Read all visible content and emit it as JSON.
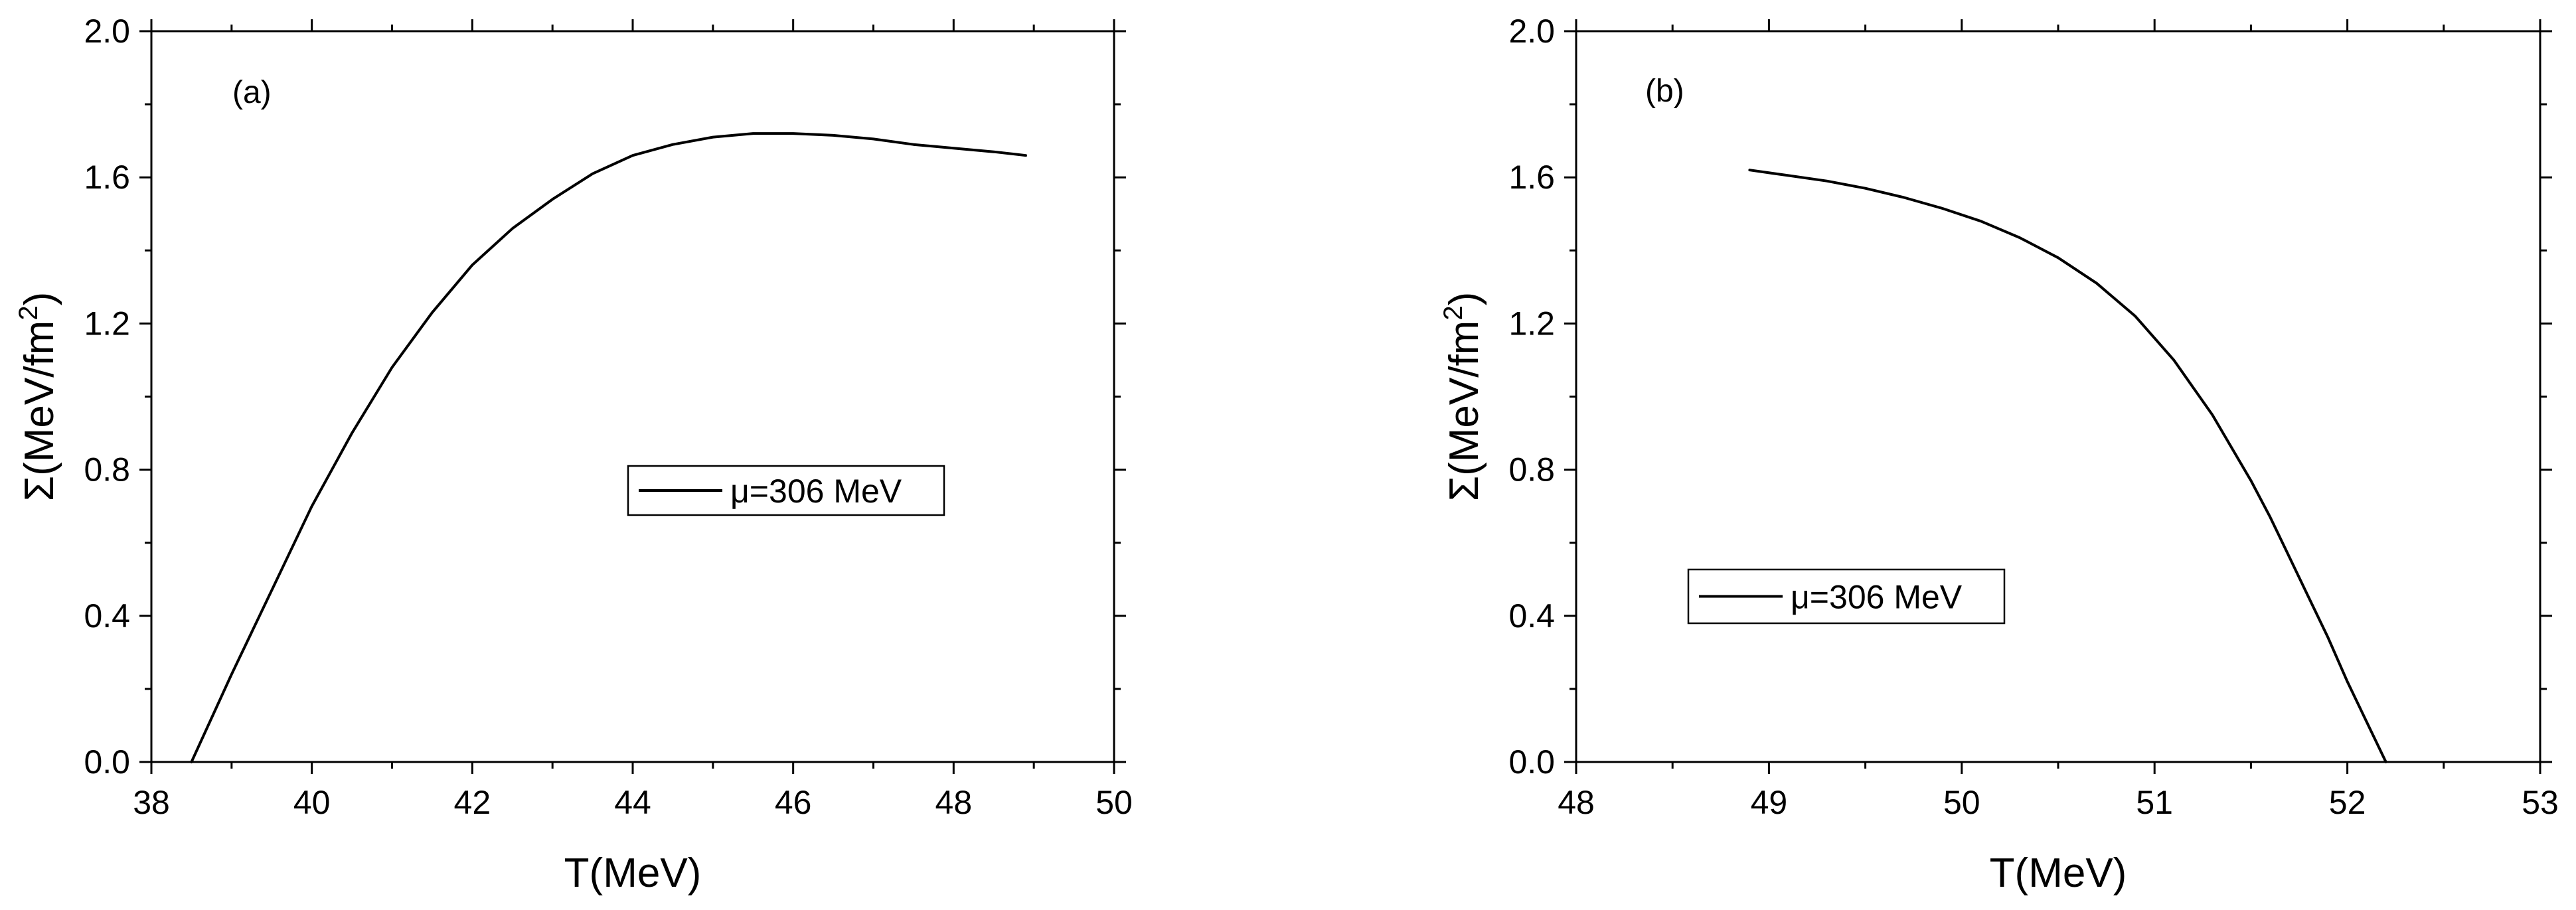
{
  "chart_data": [
    {
      "type": "line",
      "panel_label": "(a)",
      "xlabel": "T(MeV)",
      "ylabel_base": "Σ(MeV/fm",
      "ylabel_sup": "2",
      "ylabel_close": ")",
      "xlim": [
        38,
        50
      ],
      "ylim": [
        0,
        2.0
      ],
      "x_ticks": [
        "38",
        "40",
        "42",
        "44",
        "46",
        "48",
        "50"
      ],
      "y_ticks": [
        "0.0",
        "0.4",
        "0.8",
        "1.2",
        "1.6",
        "2.0"
      ],
      "legend_placement": "center-right",
      "grid": false,
      "series": [
        {
          "name": "μ=306 MeV",
          "color": "#000000",
          "x": [
            38.5,
            39.0,
            39.5,
            40.0,
            40.5,
            41.0,
            41.5,
            42.0,
            42.5,
            43.0,
            43.5,
            44.0,
            44.5,
            45.0,
            45.5,
            46.0,
            46.5,
            47.0,
            47.5,
            48.0,
            48.5,
            48.9
          ],
          "y": [
            0.0,
            0.24,
            0.47,
            0.7,
            0.9,
            1.08,
            1.23,
            1.36,
            1.46,
            1.54,
            1.61,
            1.66,
            1.69,
            1.71,
            1.72,
            1.72,
            1.715,
            1.705,
            1.69,
            1.68,
            1.67,
            1.66
          ]
        }
      ]
    },
    {
      "type": "line",
      "panel_label": "(b)",
      "xlabel": "T(MeV)",
      "ylabel_base": "Σ(MeV/fm",
      "ylabel_sup": "2",
      "ylabel_close": ")",
      "xlim": [
        48,
        53
      ],
      "ylim": [
        0,
        2.0
      ],
      "x_ticks": [
        "48",
        "49",
        "50",
        "51",
        "52",
        "53"
      ],
      "y_ticks": [
        "0.0",
        "0.4",
        "0.8",
        "1.2",
        "1.6",
        "2.0"
      ],
      "legend_placement": "lower-left",
      "grid": false,
      "series": [
        {
          "name": "μ=306 MeV",
          "color": "#000000",
          "x": [
            48.9,
            49.1,
            49.3,
            49.5,
            49.7,
            49.9,
            50.1,
            50.3,
            50.5,
            50.7,
            50.9,
            51.1,
            51.3,
            51.5,
            51.6,
            51.7,
            51.8,
            51.9,
            52.0,
            52.1,
            52.2
          ],
          "y": [
            1.62,
            1.605,
            1.59,
            1.57,
            1.545,
            1.515,
            1.48,
            1.435,
            1.38,
            1.31,
            1.22,
            1.1,
            0.95,
            0.77,
            0.67,
            0.56,
            0.45,
            0.34,
            0.22,
            0.11,
            0.0
          ]
        }
      ]
    }
  ]
}
